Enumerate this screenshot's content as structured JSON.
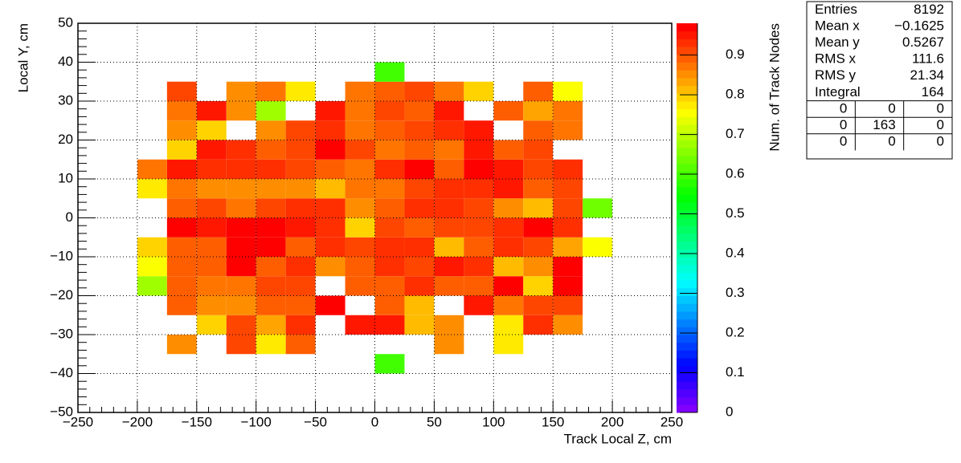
{
  "chart_data": {
    "type": "heatmap",
    "xlabel": "Track Local Z, cm",
    "ylabel": "Local Y, cm",
    "zlabel": "Num. of Track Nodes",
    "xlim": [
      -250,
      250
    ],
    "ylim": [
      -50,
      50
    ],
    "zlim": [
      0,
      0.98
    ],
    "xticks": [
      {
        "value": -250,
        "label": "−250"
      },
      {
        "value": -200,
        "label": "−200"
      },
      {
        "value": -150,
        "label": "−150"
      },
      {
        "value": -100,
        "label": "−100"
      },
      {
        "value": -50,
        "label": "−50"
      },
      0,
      50,
      100,
      150,
      200,
      250
    ],
    "yticks": [
      {
        "value": -50,
        "label": "−50"
      },
      {
        "value": -40,
        "label": "−40"
      },
      {
        "value": -30,
        "label": "−30"
      },
      {
        "value": -20,
        "label": "−20"
      },
      {
        "value": -10,
        "label": "−10"
      },
      0,
      10,
      20,
      30,
      40,
      50
    ],
    "zticks": [
      0,
      0.1,
      0.2,
      0.3,
      0.4,
      0.5,
      0.6,
      0.7,
      0.8,
      0.9
    ],
    "grid": true,
    "xbins": [
      -200,
      -175,
      -150,
      -125,
      -100,
      -75,
      -50,
      -25,
      0,
      25,
      50,
      75,
      100,
      125,
      150,
      175,
      200
    ],
    "ybins": [
      -40,
      -35,
      -30,
      -25,
      -20,
      -15,
      -10,
      -5,
      0,
      5,
      10,
      15,
      20,
      25,
      30,
      35,
      40
    ],
    "values": [
      [
        null,
        null,
        null,
        null,
        null,
        null,
        null,
        null,
        0.6,
        null,
        null,
        null,
        null,
        null,
        null,
        null
      ],
      [
        null,
        0.86,
        null,
        0.92,
        0.77,
        0.9,
        null,
        null,
        null,
        null,
        0.86,
        null,
        0.77,
        null,
        null,
        null
      ],
      [
        null,
        null,
        0.79,
        0.91,
        0.84,
        0.93,
        null,
        0.95,
        0.95,
        0.81,
        0.85,
        null,
        0.78,
        0.93,
        0.86,
        null
      ],
      [
        null,
        0.89,
        0.85,
        0.86,
        0.89,
        0.9,
        0.97,
        null,
        0.9,
        0.81,
        null,
        0.96,
        0.87,
        0.92,
        0.91,
        null
      ],
      [
        0.68,
        0.89,
        0.88,
        0.88,
        0.91,
        0.91,
        null,
        0.9,
        0.89,
        0.93,
        0.9,
        0.9,
        0.97,
        0.8,
        0.97,
        null
      ],
      [
        0.76,
        0.89,
        0.9,
        0.97,
        0.9,
        0.93,
        0.86,
        0.89,
        0.93,
        0.91,
        0.96,
        0.93,
        0.82,
        0.85,
        0.97,
        null
      ],
      [
        0.8,
        0.89,
        0.9,
        0.97,
        0.97,
        0.9,
        0.93,
        0.92,
        0.93,
        0.93,
        0.81,
        0.89,
        0.93,
        0.92,
        0.83,
        0.76
      ],
      [
        null,
        0.97,
        0.95,
        0.98,
        0.97,
        0.95,
        0.93,
        0.79,
        0.91,
        0.89,
        0.91,
        0.91,
        0.93,
        0.97,
        0.93,
        null
      ],
      [
        null,
        0.9,
        0.91,
        0.88,
        0.91,
        0.94,
        0.93,
        0.85,
        0.9,
        0.93,
        0.94,
        0.92,
        0.86,
        0.82,
        0.92,
        0.63
      ],
      [
        0.77,
        0.87,
        0.85,
        0.86,
        0.85,
        0.86,
        0.82,
        0.88,
        0.87,
        0.92,
        0.93,
        0.93,
        0.95,
        0.9,
        0.92,
        null
      ],
      [
        0.87,
        0.96,
        0.94,
        0.93,
        0.94,
        0.91,
        0.9,
        0.88,
        0.94,
        0.97,
        0.9,
        0.97,
        0.95,
        0.92,
        0.93,
        null
      ],
      [
        null,
        0.8,
        0.95,
        0.93,
        0.9,
        0.91,
        0.97,
        0.92,
        0.87,
        0.89,
        0.87,
        0.96,
        0.9,
        0.92,
        null,
        null
      ],
      [
        null,
        0.85,
        0.8,
        null,
        0.86,
        0.91,
        0.94,
        0.87,
        0.9,
        0.91,
        0.93,
        0.96,
        null,
        0.9,
        0.87,
        null
      ],
      [
        null,
        0.87,
        0.96,
        0.85,
        0.68,
        null,
        0.96,
        0.88,
        0.92,
        0.9,
        0.96,
        null,
        0.9,
        0.83,
        0.87,
        null
      ],
      [
        null,
        0.92,
        null,
        0.85,
        0.87,
        0.78,
        null,
        0.88,
        0.9,
        0.92,
        0.87,
        0.8,
        null,
        0.9,
        0.76,
        null
      ],
      [
        null,
        null,
        null,
        null,
        null,
        null,
        null,
        null,
        0.6,
        null,
        null,
        null,
        null,
        null,
        null,
        null
      ]
    ],
    "stats": {
      "rows": [
        {
          "label": "Entries",
          "value": "8192"
        },
        {
          "label": "Mean x",
          "value": "−0.1625"
        },
        {
          "label": "Mean y",
          "value": "0.5267"
        },
        {
          "label": "RMS x",
          "value": "111.6"
        },
        {
          "label": "RMS y",
          "value": "21.34"
        },
        {
          "label": "Integral",
          "value": "164"
        }
      ],
      "table": [
        [
          0,
          0,
          0
        ],
        [
          0,
          163,
          0
        ],
        [
          0,
          0,
          0
        ]
      ]
    }
  }
}
